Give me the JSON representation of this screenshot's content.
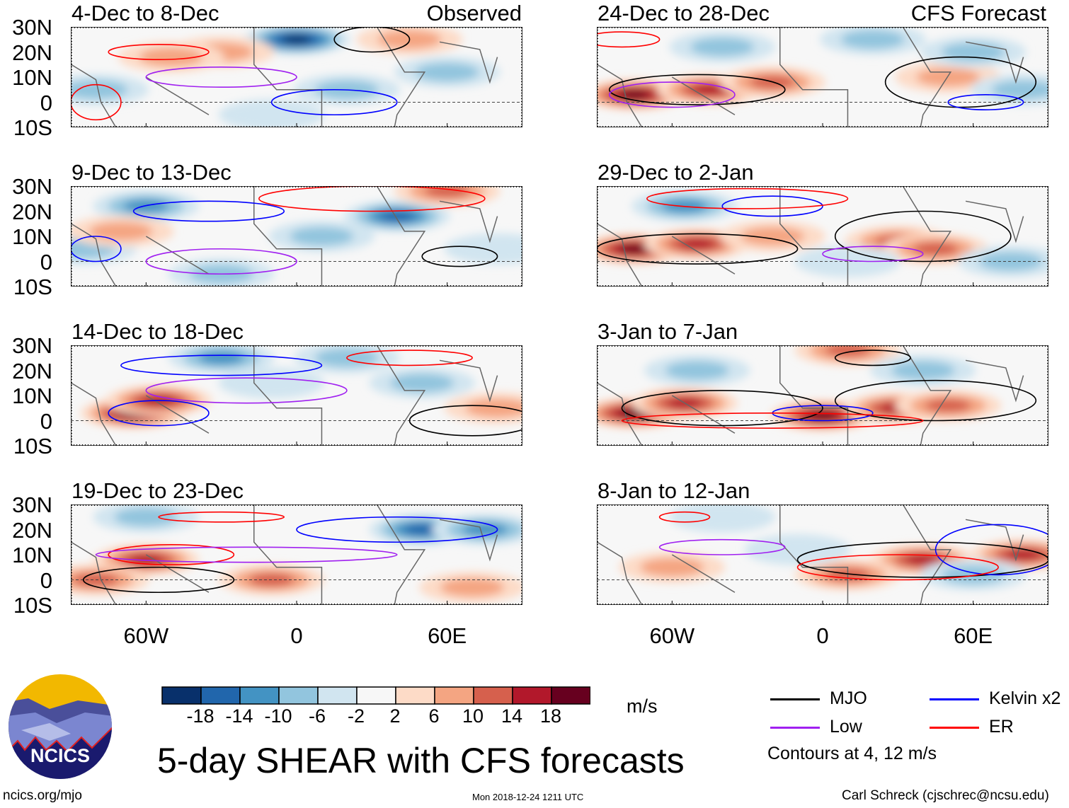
{
  "chart_data": {
    "type": "heatmap",
    "title": "5-day SHEAR with CFS forecasts",
    "units": "m/s",
    "column_headers": [
      "Observed",
      "CFS Forecast"
    ],
    "lat_ticks": [
      "30N",
      "20N",
      "10N",
      "0",
      "10S"
    ],
    "lat_values": [
      30,
      20,
      10,
      0,
      -10
    ],
    "lon_ticks": [
      "60W",
      "0",
      "60E"
    ],
    "lon_values": [
      -60,
      0,
      60
    ],
    "lon_range": [
      -90,
      90
    ],
    "lat_range": [
      -10,
      30
    ],
    "colorbar": {
      "levels": [
        "-18",
        "-14",
        "-10",
        "-6",
        "-2",
        "2",
        "6",
        "10",
        "14",
        "18"
      ],
      "colors": [
        "#08306b",
        "#2166ac",
        "#4393c3",
        "#92c5de",
        "#d1e5f0",
        "#f7f7f7",
        "#fddbc7",
        "#f4a582",
        "#d6604d",
        "#b2182b",
        "#67001f"
      ]
    },
    "legend": [
      {
        "label": "MJO",
        "color": "#000000"
      },
      {
        "label": "Kelvin x2",
        "color": "#0000ff"
      },
      {
        "label": "Low",
        "color": "#a020f0"
      },
      {
        "label": "ER",
        "color": "#ff0000"
      }
    ],
    "contour_note": "Contours at 4, 12 m/s",
    "panels": [
      {
        "title": "4-Dec to 8-Dec",
        "col": 0,
        "row": 0,
        "anoms": [
          [
            0,
            25,
            -18
          ],
          [
            -30,
            20,
            8
          ],
          [
            60,
            12,
            -8
          ],
          [
            -80,
            5,
            -6
          ],
          [
            20,
            5,
            -6
          ],
          [
            -50,
            18,
            6
          ],
          [
            -10,
            -5,
            -4
          ],
          [
            45,
            25,
            6
          ]
        ],
        "contours": [
          [
            -55,
            20,
            20,
            3,
            "ER"
          ],
          [
            30,
            25,
            15,
            5,
            "MJO"
          ],
          [
            15,
            0,
            25,
            5,
            "Kelvin"
          ],
          [
            -30,
            10,
            30,
            4,
            "Low"
          ],
          [
            -80,
            0,
            10,
            7,
            "ER"
          ]
        ]
      },
      {
        "title": "24-Dec to 28-Dec",
        "col": 1,
        "row": 0,
        "anoms": [
          [
            -75,
            3,
            18
          ],
          [
            -45,
            5,
            14
          ],
          [
            -20,
            8,
            10
          ],
          [
            50,
            10,
            8
          ],
          [
            -40,
            22,
            -8
          ],
          [
            60,
            20,
            -8
          ],
          [
            80,
            5,
            -6
          ],
          [
            20,
            25,
            -6
          ]
        ],
        "contours": [
          [
            -50,
            5,
            35,
            6,
            "MJO"
          ],
          [
            55,
            8,
            30,
            10,
            "MJO"
          ],
          [
            65,
            0,
            15,
            3,
            "Kelvin"
          ],
          [
            -80,
            25,
            15,
            3,
            "ER"
          ],
          [
            -60,
            3,
            25,
            5,
            "Low"
          ]
        ]
      },
      {
        "title": "9-Dec to 13-Dec",
        "col": 0,
        "row": 1,
        "anoms": [
          [
            40,
            18,
            -14
          ],
          [
            -60,
            22,
            -10
          ],
          [
            -30,
            -5,
            -8
          ],
          [
            60,
            28,
            12
          ],
          [
            -85,
            5,
            -6
          ],
          [
            10,
            10,
            -6
          ],
          [
            -70,
            12,
            6
          ],
          [
            80,
            5,
            -4
          ]
        ],
        "contours": [
          [
            65,
            2,
            15,
            4,
            "MJO"
          ],
          [
            -35,
            20,
            30,
            4,
            "Kelvin"
          ],
          [
            30,
            25,
            45,
            5,
            "ER"
          ],
          [
            -30,
            0,
            30,
            5,
            "Low"
          ],
          [
            -80,
            5,
            10,
            5,
            "Kelvin"
          ]
        ]
      },
      {
        "title": "29-Dec to 2-Jan",
        "col": 1,
        "row": 1,
        "anoms": [
          [
            -75,
            5,
            18
          ],
          [
            -50,
            7,
            14
          ],
          [
            -20,
            10,
            8
          ],
          [
            30,
            8,
            10
          ],
          [
            45,
            5,
            12
          ],
          [
            -55,
            22,
            -10
          ],
          [
            75,
            0,
            -8
          ],
          [
            10,
            0,
            -4
          ]
        ],
        "contours": [
          [
            -50,
            5,
            40,
            6,
            "MJO"
          ],
          [
            40,
            10,
            35,
            10,
            "MJO"
          ],
          [
            -20,
            22,
            20,
            4,
            "Kelvin"
          ],
          [
            20,
            3,
            20,
            3,
            "Low"
          ],
          [
            -30,
            25,
            40,
            4,
            "ER"
          ]
        ]
      },
      {
        "title": "14-Dec to 18-Dec",
        "col": 0,
        "row": 2,
        "anoms": [
          [
            -65,
            3,
            18
          ],
          [
            -55,
            8,
            14
          ],
          [
            -30,
            25,
            -10
          ],
          [
            50,
            15,
            -8
          ],
          [
            20,
            25,
            -6
          ],
          [
            80,
            5,
            8
          ],
          [
            -10,
            15,
            -4
          ]
        ],
        "contours": [
          [
            -55,
            3,
            20,
            5,
            "Kelvin"
          ],
          [
            70,
            0,
            25,
            6,
            "MJO"
          ],
          [
            45,
            25,
            25,
            3,
            "ER"
          ],
          [
            -30,
            22,
            40,
            4,
            "Kelvin"
          ],
          [
            -20,
            12,
            40,
            5,
            "Low"
          ]
        ]
      },
      {
        "title": "3-Jan to 7-Jan",
        "col": 1,
        "row": 2,
        "anoms": [
          [
            -75,
            3,
            18
          ],
          [
            -55,
            7,
            14
          ],
          [
            0,
            2,
            18
          ],
          [
            30,
            5,
            14
          ],
          [
            50,
            6,
            10
          ],
          [
            10,
            28,
            12
          ],
          [
            -50,
            20,
            -6
          ],
          [
            40,
            20,
            -6
          ]
        ],
        "contours": [
          [
            -40,
            5,
            40,
            7,
            "MJO"
          ],
          [
            45,
            8,
            40,
            8,
            "MJO"
          ],
          [
            0,
            3,
            20,
            3,
            "Kelvin"
          ],
          [
            20,
            25,
            15,
            3,
            "MJO"
          ],
          [
            -20,
            0,
            60,
            3,
            "ER"
          ]
        ]
      },
      {
        "title": "19-Dec to 23-Dec",
        "col": 0,
        "row": 3,
        "anoms": [
          [
            -60,
            8,
            14
          ],
          [
            -80,
            0,
            10
          ],
          [
            -10,
            0,
            10
          ],
          [
            50,
            20,
            -14
          ],
          [
            75,
            20,
            -10
          ],
          [
            -60,
            25,
            -6
          ],
          [
            70,
            -3,
            6
          ]
        ],
        "contours": [
          [
            -55,
            0,
            30,
            5,
            "MJO"
          ],
          [
            -50,
            10,
            25,
            4,
            "ER"
          ],
          [
            40,
            20,
            40,
            5,
            "Kelvin"
          ],
          [
            -20,
            10,
            60,
            3,
            "Low"
          ],
          [
            -30,
            25,
            25,
            2,
            "ER"
          ]
        ]
      },
      {
        "title": "8-Jan to 12-Jan",
        "col": 1,
        "row": 3,
        "anoms": [
          [
            40,
            8,
            14
          ],
          [
            80,
            10,
            14
          ],
          [
            10,
            2,
            10
          ],
          [
            -60,
            5,
            8
          ],
          [
            60,
            2,
            -8
          ],
          [
            -40,
            25,
            -2
          ],
          [
            -10,
            12,
            -4
          ]
        ],
        "contours": [
          [
            40,
            8,
            50,
            7,
            "MJO"
          ],
          [
            70,
            12,
            25,
            10,
            "Kelvin"
          ],
          [
            30,
            5,
            40,
            5,
            "ER"
          ],
          [
            -40,
            13,
            25,
            3,
            "Low"
          ],
          [
            -55,
            25,
            10,
            2,
            "ER"
          ]
        ]
      }
    ]
  },
  "footer": {
    "logo_text": "NCICS",
    "url": "ncics.org/mjo",
    "timestamp": "Mon 2018-12-24 1211 UTC",
    "author": "Carl Schreck (cjschrec@ncsu.edu)"
  }
}
